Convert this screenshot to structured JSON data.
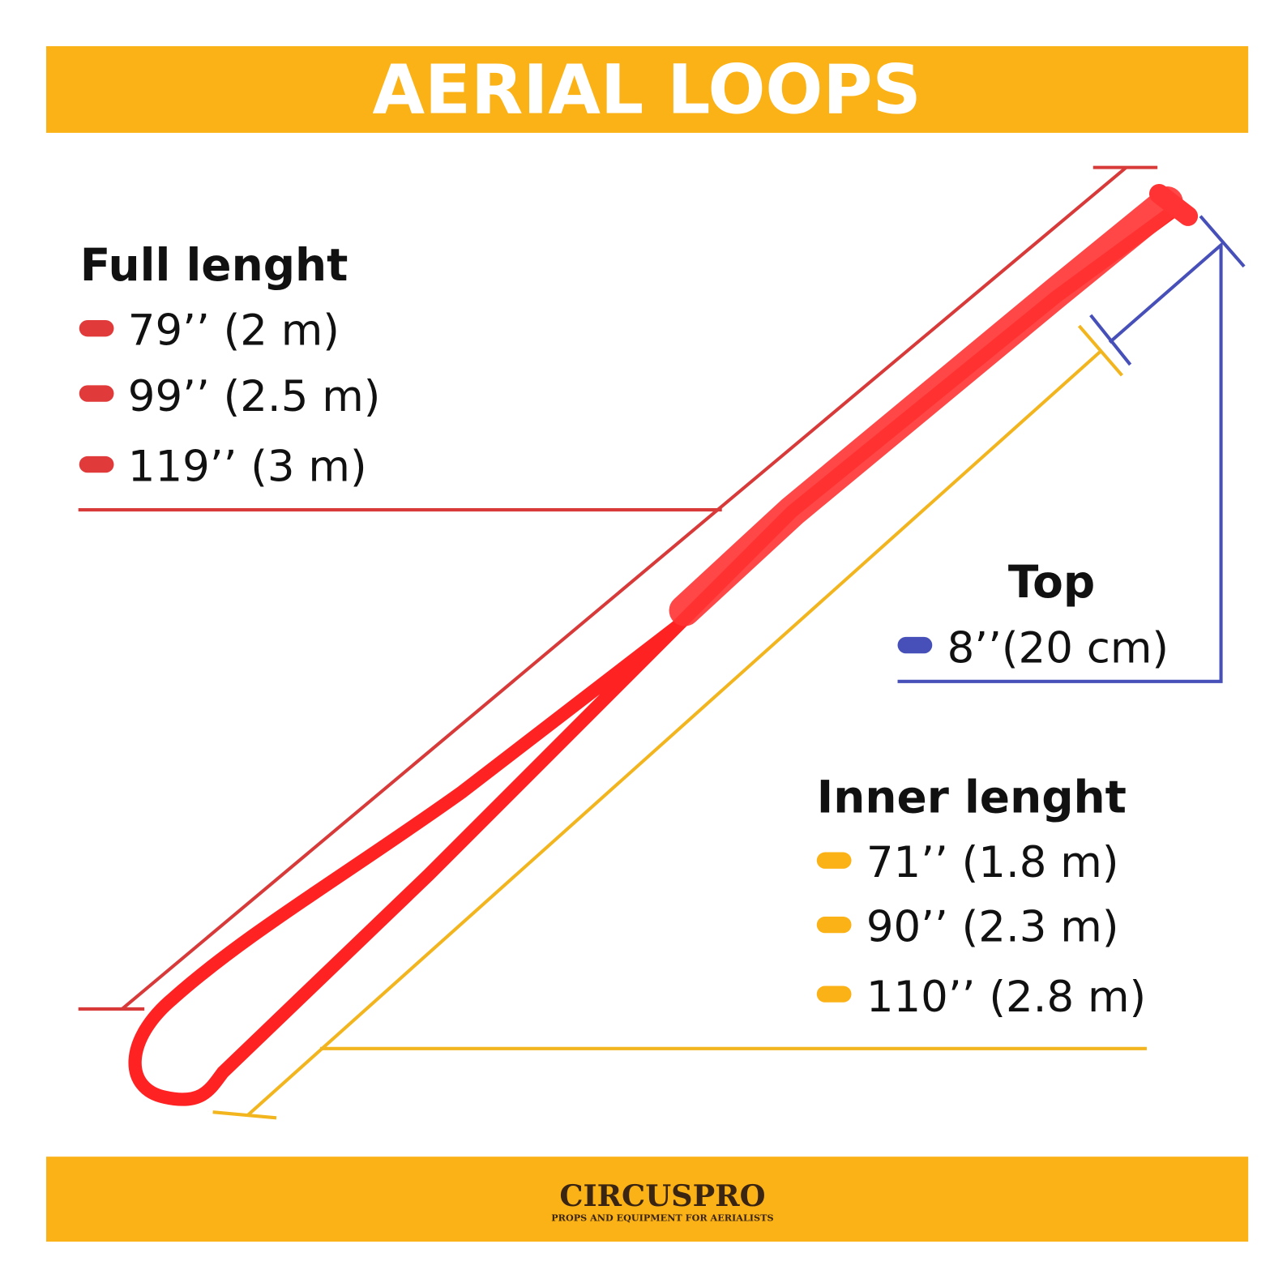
{
  "header": {
    "title": "AERIAL LOOPS"
  },
  "full_length": {
    "title": "Full lenght",
    "items": [
      "79’’ (2 m)",
      "99’’ (2.5 m)",
      "119’’ (3 m)"
    ]
  },
  "top": {
    "title": "Top",
    "items": [
      "8’’(20 cm)"
    ]
  },
  "inner_length": {
    "title": "Inner lenght",
    "items": [
      "71’’ (1.8 m)",
      "90’’ (2.3 m)",
      "110’’ (2.8 m)"
    ]
  },
  "footer": {
    "brand": "CIRCUSPRO",
    "tagline": "PROPS AND EQUIPMENT FOR AERIALISTS"
  }
}
